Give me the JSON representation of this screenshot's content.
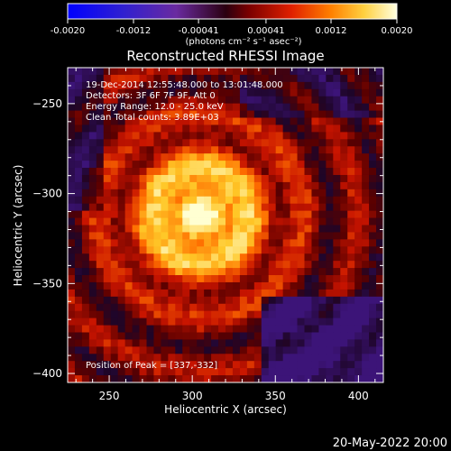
{
  "chart_data": {
    "type": "heatmap",
    "colorbar": {
      "tick_labels": [
        "-0.0020",
        "-0.0012",
        "-0.00041",
        "0.00041",
        "0.0012",
        "0.0020"
      ],
      "tick_values": [
        -0.002,
        -0.0012,
        -0.00041,
        0.00041,
        0.0012,
        0.002
      ],
      "range": [
        -0.002,
        0.002
      ],
      "unit_label": "(photons cm⁻² s⁻¹ asec⁻²)"
    },
    "title": "Reconstructed RHESSI Image",
    "xlabel": "Heliocentric X (arcsec)",
    "ylabel": "Heliocentric Y (arcsec)",
    "xlim": [
      225,
      415
    ],
    "ylim": [
      -405,
      -230
    ],
    "xticks": [
      250,
      300,
      350,
      400
    ],
    "yticks": [
      -250,
      -300,
      -350,
      -400
    ],
    "xtick_labels": [
      "250",
      "300",
      "350",
      "400"
    ],
    "ytick_labels": [
      "−250",
      "−300",
      "−350",
      "−400"
    ],
    "annotations": [
      "19-Dec-2014 12:55:48.000 to 13:01:48.000",
      "Detectors: 3F 6F 7F 9F, Att 0",
      "Energy Range: 12.0 - 25.0 keV",
      "Clean     Total counts: 3.89E+03"
    ],
    "peak_label": "Position of Peak = [337,-332]",
    "peak": [
      337,
      -332
    ],
    "colors": {
      "background": "#000000",
      "text": "#ffffff"
    }
  },
  "footer": {
    "date": "20-May-2022 20:00"
  }
}
